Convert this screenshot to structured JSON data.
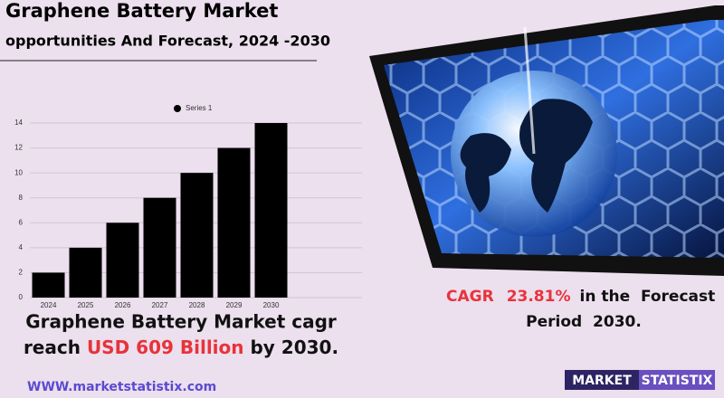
{
  "chart_data": {
    "type": "bar",
    "title": "Graphene Battery Market",
    "subtitle": "opportunities And Forecast, 2024 -2030",
    "categories": [
      "2024",
      "2025",
      "2026",
      "2027",
      "2028",
      "2029",
      "2030"
    ],
    "series": [
      {
        "name": "Series 1",
        "color": "#000000",
        "values": [
          2,
          4,
          6,
          8,
          10,
          12,
          14
        ]
      }
    ],
    "ylim": [
      0,
      14
    ],
    "yticks": [
      0,
      2,
      4,
      6,
      8,
      10,
      12,
      14
    ],
    "grid": true,
    "legend": "top"
  },
  "headline": {
    "line1": "Graphene Battery Market cagr",
    "prefix": "reach",
    "highlight": "USD 609 Billion",
    "suffix": "by 2030."
  },
  "cagr": {
    "label": "CAGR",
    "value": "23.81%",
    "text": "in the  Forecast",
    "line2": "Period  2030."
  },
  "website": "WWW.marketstatistix.com",
  "logo": {
    "left": "MARKET",
    "right": "STATISTIX"
  }
}
